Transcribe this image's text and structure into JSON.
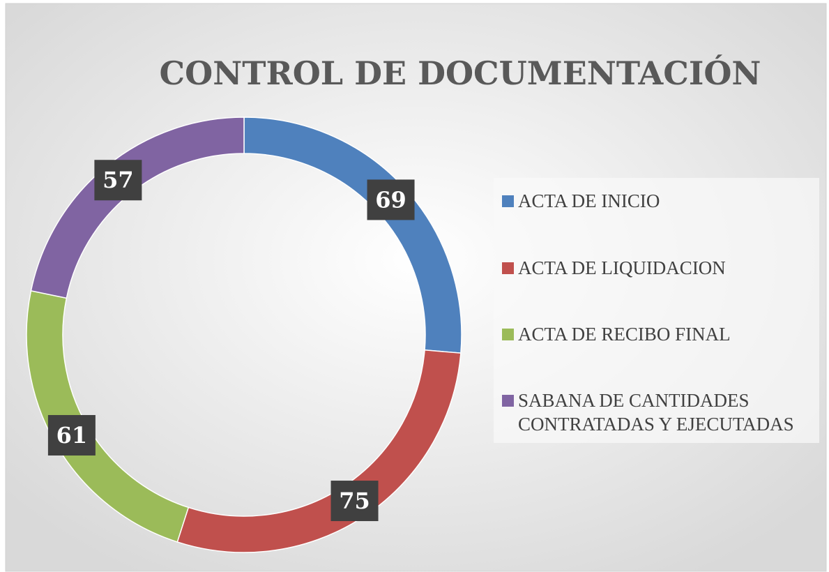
{
  "chart_data": {
    "type": "donut",
    "title": "CONTROL DE DOCUMENTACIÓN",
    "categories": [
      "ACTA DE INICIO",
      "ACTA DE LIQUIDACION",
      "ACTA DE RECIBO FINAL",
      "SABANA DE CANTIDADES CONTRATADAS Y EJECUTADAS"
    ],
    "values": [
      69,
      75,
      61,
      57
    ],
    "colors": [
      "#4f81bd",
      "#c0504d",
      "#9bbb59",
      "#8064a2"
    ],
    "legend": "right"
  }
}
